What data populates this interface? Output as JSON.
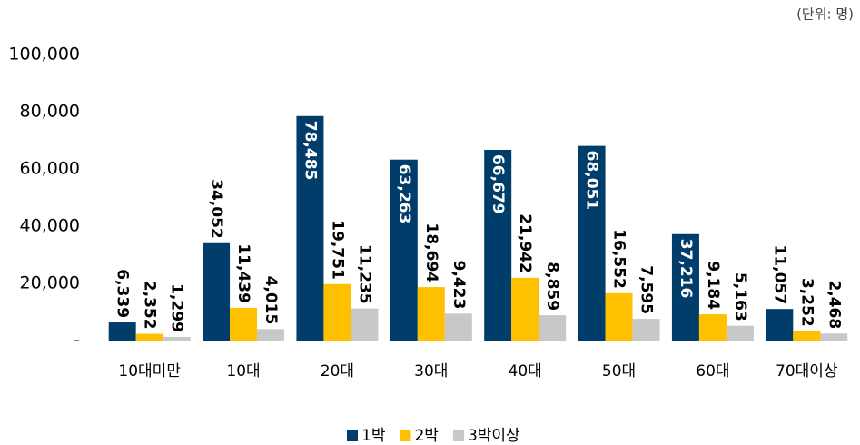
{
  "chart_data": {
    "type": "bar",
    "annotation": "(단위: 명)",
    "categories": [
      "10대미만",
      "10대",
      "20대",
      "30대",
      "40대",
      "50대",
      "60대",
      "70대이상"
    ],
    "series": [
      {
        "name": "1박",
        "color": "#003d6b",
        "values": [
          6339,
          34052,
          78485,
          63263,
          66679,
          68051,
          37216,
          11057
        ],
        "value_labels": [
          "6,339",
          "34,052",
          "78,485",
          "63,263",
          "66,679",
          "68,051",
          "37,216",
          "11,057"
        ]
      },
      {
        "name": "2박",
        "color": "#ffc000",
        "values": [
          2352,
          11439,
          19751,
          18694,
          21942,
          16552,
          9184,
          3252
        ],
        "value_labels": [
          "2,352",
          "11,439",
          "19,751",
          "18,694",
          "21,942",
          "16,552",
          "9,184",
          "3,252"
        ]
      },
      {
        "name": "3박이상",
        "color": "#c8c8c8",
        "values": [
          1299,
          4015,
          11235,
          9423,
          8859,
          7595,
          5163,
          2468
        ],
        "value_labels": [
          "1,299",
          "4,015",
          "11,235",
          "9,423",
          "8,859",
          "7,595",
          "5,163",
          "2,468"
        ]
      }
    ],
    "ylim": [
      0,
      100000
    ],
    "yticks": [
      {
        "value": 0,
        "label": "-"
      },
      {
        "value": 20000,
        "label": "20,000"
      },
      {
        "value": 40000,
        "label": "40,000"
      },
      {
        "value": 60000,
        "label": "60,000"
      },
      {
        "value": 80000,
        "label": "80,000"
      },
      {
        "value": 100000,
        "label": "100,000"
      }
    ],
    "legend": "bottom"
  }
}
